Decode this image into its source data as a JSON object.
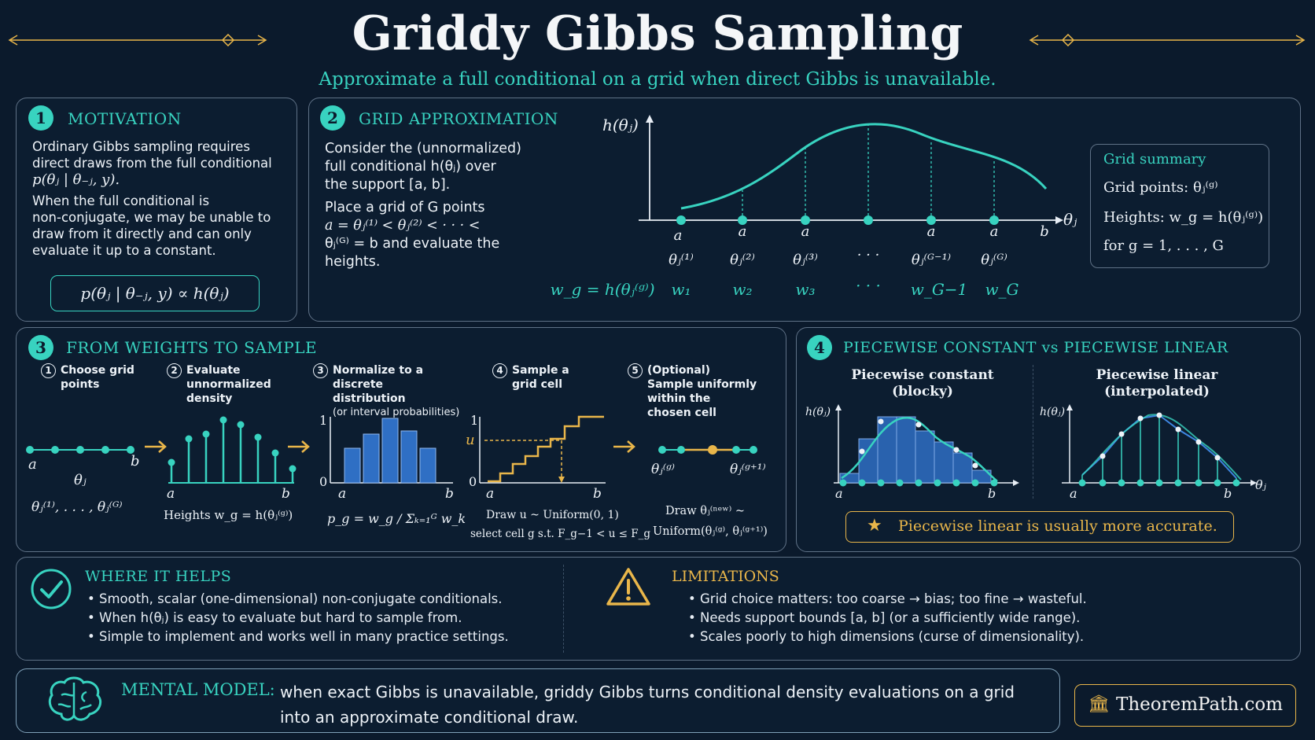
{
  "header": {
    "title": "Griddy Gibbs Sampling",
    "subtitle": "Approximate a full conditional on a grid when direct Gibbs is unavailable."
  },
  "motivation": {
    "number": "1",
    "title": "MOTIVATION",
    "p1_line1": "Ordinary Gibbs sampling requires",
    "p1_line2": "direct draws from the full conditional",
    "p1_math": "p(θⱼ | θ₋ⱼ, y).",
    "p2_line1": "When the full conditional is",
    "p2_line2": "non-conjugate, we may be unable to",
    "p2_line3": "draw from it directly and can only",
    "p2_line4": "evaluate it up to a constant.",
    "formula": "p(θⱼ | θ₋ⱼ, y) ∝ h(θⱼ)"
  },
  "grid": {
    "number": "2",
    "title": "GRID APPROXIMATION",
    "p1_line1": "Consider the (unnormalized)",
    "p1_line2": "full conditional h(θⱼ) over",
    "p1_line3": "the support [a, b].",
    "p2_line1": "Place a grid of G points",
    "p2_line2": "a = θⱼ⁽¹⁾ < θⱼ⁽²⁾ < · · · <",
    "p2_line3": "θⱼ⁽ᴳ⁾ = b and evaluate the",
    "p2_line4": "heights.",
    "y_label": "h(θⱼ)",
    "x_label": "θⱼ",
    "a_label": "a",
    "b_label": "b",
    "point_labels": [
      "θⱼ⁽¹⁾",
      "θⱼ⁽²⁾",
      "θⱼ⁽³⁾",
      "· · ·",
      "θⱼ⁽ᴳ⁻¹⁾",
      "θⱼ⁽ᴳ⁾"
    ],
    "weight_eq": "w_g = h(θⱼ⁽ᵍ⁾)",
    "weight_labels": [
      "w₁",
      "w₂",
      "w₃",
      "· · ·",
      "w_G−1",
      "w_G"
    ],
    "summary": {
      "title": "Grid summary",
      "l1": "Grid points: θⱼ⁽ᵍ⁾",
      "l2": "Heights: w_g = h(θⱼ⁽ᵍ⁾)",
      "l3": "for g = 1, . . . , G"
    }
  },
  "weights": {
    "number": "3",
    "title": "FROM WEIGHTS TO SAMPLE",
    "steps": [
      {
        "n": "1",
        "label": "Choose grid points"
      },
      {
        "n": "2",
        "label": "Evaluate unnormalized density"
      },
      {
        "n": "3",
        "label": "Normalize to a discrete distribution",
        "sub": "(or interval probabilities)"
      },
      {
        "n": "4",
        "label": "Sample a grid cell"
      },
      {
        "n": "5",
        "label": "(Optional) Sample uniformly within the chosen cell"
      }
    ],
    "s1_theta": "θⱼ",
    "s1_seq": "θⱼ⁽¹⁾, . . . , θⱼ⁽ᴳ⁾",
    "s2_caption": "Heights w_g = h(θⱼ⁽ᵍ⁾)",
    "s3_caption": "p_g = w_g / Σₖ₌₁ᴳ w_k",
    "s4_u": "u",
    "s4_cap1": "Draw u ~ Uniform(0, 1)",
    "s4_cap2": "select cell g s.t. F_g−1 < u ≤ F_g",
    "s5_left": "θⱼ⁽ᵍ⁾",
    "s5_right": "θⱼ⁽ᵍ⁺¹⁾",
    "s5_cap1": "Draw θⱼ⁽ⁿᵉʷ⁾ ~",
    "s5_cap2": "Uniform(θⱼ⁽ᵍ⁾, θⱼ⁽ᵍ⁺¹⁾)",
    "one": "1",
    "zero": "0",
    "a": "a",
    "b": "b"
  },
  "piecewise": {
    "number": "4",
    "title": "PIECEWISE CONSTANT vs PIECEWISE LINEAR",
    "left_title1": "Piecewise constant",
    "left_title2": "(blocky)",
    "right_title1": "Piecewise linear",
    "right_title2": "(interpolated)",
    "y_label": "h(θⱼ)",
    "x_label": "θⱼ",
    "a": "a",
    "b": "b",
    "note": "Piecewise linear is usually more accurate."
  },
  "helps": {
    "title": "WHERE IT HELPS",
    "items": [
      "Smooth, scalar (one-dimensional) non-conjugate conditionals.",
      "When h(θⱼ) is easy to evaluate but hard to sample from.",
      "Simple to implement and works well in many practice settings."
    ]
  },
  "limits": {
    "title": "LIMITATIONS",
    "items": [
      "Grid choice matters: too coarse → bias; too fine → wasteful.",
      "Needs support bounds [a, b] (or a sufficiently wide range).",
      "Scales poorly to high dimensions (curse of dimensionality)."
    ]
  },
  "mental": {
    "label": "MENTAL MODEL:",
    "line1": "when exact Gibbs is unavailable, griddy Gibbs turns conditional density evaluations on a grid",
    "line2": "into an approximate conditional draw."
  },
  "brand": "TheoremPath.com",
  "colors": {
    "background": "#0b1a2c",
    "teal": "#38d3c0",
    "gold": "#e9b64a",
    "bar_blue": "#2f6fc4"
  }
}
